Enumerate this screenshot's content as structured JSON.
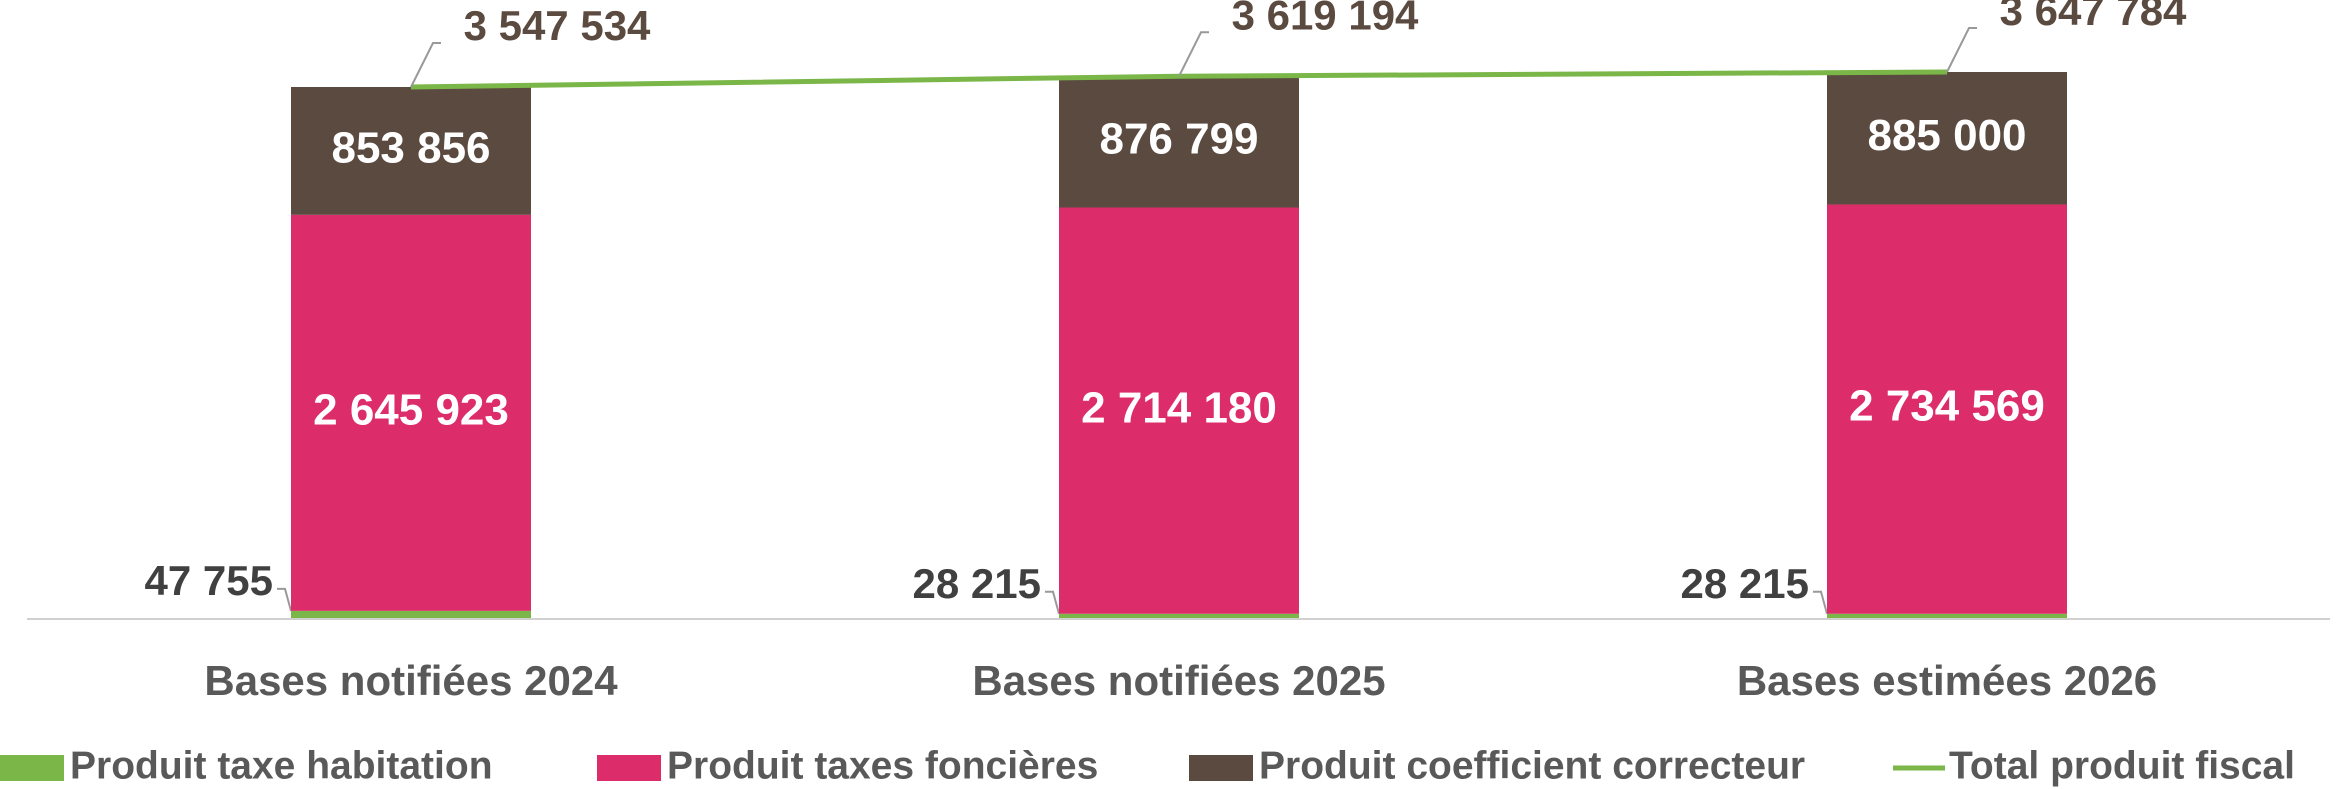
{
  "chart_data": {
    "type": "bar",
    "categories": [
      "Bases notifiées 2024",
      "Bases notifiées 2025",
      "Bases estimées 2026"
    ],
    "stacked": true,
    "legend": "bottom",
    "series": [
      {
        "name": "Produit taxe habitation",
        "color": "#7ab648",
        "values": [
          47755,
          28215,
          28215
        ],
        "value_labels": [
          "47 755",
          "28 215",
          "28 215"
        ]
      },
      {
        "name": "Produit taxes foncières",
        "color": "#dc2d6a",
        "values": [
          2645923,
          2714180,
          2734569
        ],
        "value_labels": [
          "2 645 923",
          "2 714 180",
          "2 734 569"
        ]
      },
      {
        "name": "Produit coefficient correcteur",
        "color": "#5a4a3f",
        "values": [
          853856,
          876799,
          885000
        ],
        "value_labels": [
          "853 856",
          "876 799",
          "885 000"
        ]
      },
      {
        "name": "Total produit fiscal",
        "color": "#7ab648",
        "type": "line",
        "values": [
          3547534,
          3619194,
          3647784
        ],
        "value_labels": [
          "3 547 534",
          "3 619 194",
          "3 647 784"
        ]
      }
    ]
  }
}
